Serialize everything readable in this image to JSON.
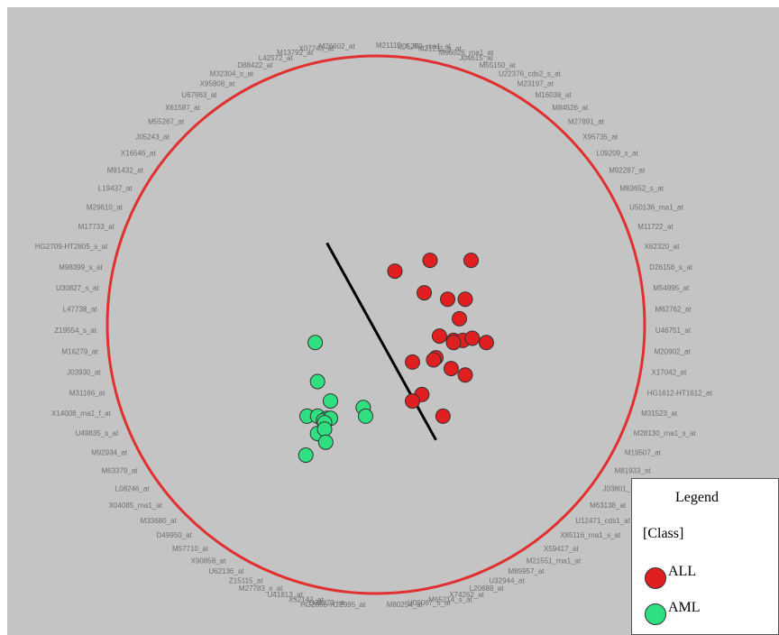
{
  "colors": {
    "background": "#c4c4c4",
    "circle": "#e03030",
    "separator": "#000000",
    "label": "#6f6f6f"
  },
  "chart_data": {
    "type": "scatter",
    "title": "",
    "xlabel": "",
    "ylabel": "",
    "grid": false,
    "legend_position": "bottom-right",
    "perimeter_labels": [
      "M21119_s_at",
      "U05259_rna1_at",
      "M31211_s_at",
      "M96326_rna1_at",
      "J04615_at",
      "M55150_at",
      "U22376_cds2_s_at",
      "M23197_at",
      "M16038_at",
      "M84526_at",
      "M27891_at",
      "X95735_at",
      "L09209_s_at",
      "M92287_at",
      "M83652_s_at",
      "U50136_rna1_at",
      "M11722_at",
      "X62320_at",
      "D26156_s_at",
      "M54995_at",
      "M62762_at",
      "U46751_at",
      "M20902_at",
      "X17042_at",
      "HG1612-HT1612_at",
      "M31523_at",
      "M28130_rna1_s_at",
      "M19507_at",
      "M81933_at",
      "J03801_f_at",
      "M63138_at",
      "U12471_cds1_at",
      "X85116_rna1_s_at",
      "X59417_at",
      "M21551_rna1_at",
      "M89957_at",
      "U32944_at",
      "L20688_at",
      "X74262_at",
      "M65214_s_at",
      "U09087_s_at",
      "M80254_at",
      "HG2855-HT2995_at",
      "D38073_at",
      "X52142_at",
      "U41813_at",
      "M27783_s_at",
      "Z15115_at",
      "U62136_at",
      "X90858_at",
      "M57710_at",
      "D49950_at",
      "M33680_at",
      "X04085_rna1_at",
      "L08246_at",
      "M63379_at",
      "M92934_at",
      "U49835_s_at",
      "X14008_rna1_f_at",
      "M31166_at",
      "J03930_at",
      "M16279_at",
      "Z19554_s_at",
      "L47738_at",
      "U30827_s_at",
      "M98399_s_at",
      "HG2709-HT2805_s_at",
      "M17733_at",
      "M29610_at",
      "L19437_at",
      "M91432_at",
      "X16546_at",
      "J05243_at",
      "M55267_at",
      "X61587_at",
      "U67963_at",
      "X95808_at",
      "M32304_s_at",
      "D88422_at",
      "L42572_at",
      "M13792_at",
      "X07743_at",
      "M26602_at"
    ],
    "series": [
      {
        "name": "ALL",
        "color": "#e02020",
        "points": [
          [
            0.2,
            0.86
          ],
          [
            0.5,
            0.91
          ],
          [
            0.85,
            0.91
          ],
          [
            0.45,
            0.76
          ],
          [
            0.65,
            0.73
          ],
          [
            0.8,
            0.73
          ],
          [
            0.75,
            0.64
          ],
          [
            0.58,
            0.56
          ],
          [
            0.7,
            0.54
          ],
          [
            0.78,
            0.54
          ],
          [
            0.86,
            0.55
          ],
          [
            0.7,
            0.53
          ],
          [
            0.98,
            0.53
          ],
          [
            0.35,
            0.44
          ],
          [
            0.55,
            0.46
          ],
          [
            0.53,
            0.45
          ],
          [
            0.68,
            0.41
          ],
          [
            0.8,
            0.38
          ],
          [
            0.43,
            0.29
          ],
          [
            0.35,
            0.26
          ],
          [
            0.61,
            0.19
          ]
        ]
      },
      {
        "name": "AML",
        "color": "#30e080",
        "points": [
          [
            -0.48,
            0.53
          ],
          [
            -0.46,
            0.35
          ],
          [
            -0.35,
            0.26
          ],
          [
            -0.55,
            0.19
          ],
          [
            -0.46,
            0.19
          ],
          [
            -0.38,
            0.18
          ],
          [
            -0.41,
            0.17
          ],
          [
            -0.35,
            0.18
          ],
          [
            -0.4,
            0.16
          ],
          [
            -0.07,
            0.23
          ],
          [
            -0.05,
            0.19
          ],
          [
            -0.46,
            0.11
          ],
          [
            -0.4,
            0.13
          ],
          [
            -0.39,
            0.07
          ],
          [
            -0.56,
            0.01
          ]
        ]
      }
    ],
    "separator_line": {
      "from": [
        -0.38,
        0.99
      ],
      "to": [
        0.55,
        0.08
      ]
    },
    "xlim": [
      -1,
      1
    ],
    "ylim": [
      -1,
      1
    ]
  },
  "legend": {
    "title": "Legend",
    "group_label": "[Class]",
    "entries": [
      {
        "label": "ALL",
        "color": "#e02020"
      },
      {
        "label": "AML",
        "color": "#30e080"
      }
    ]
  }
}
